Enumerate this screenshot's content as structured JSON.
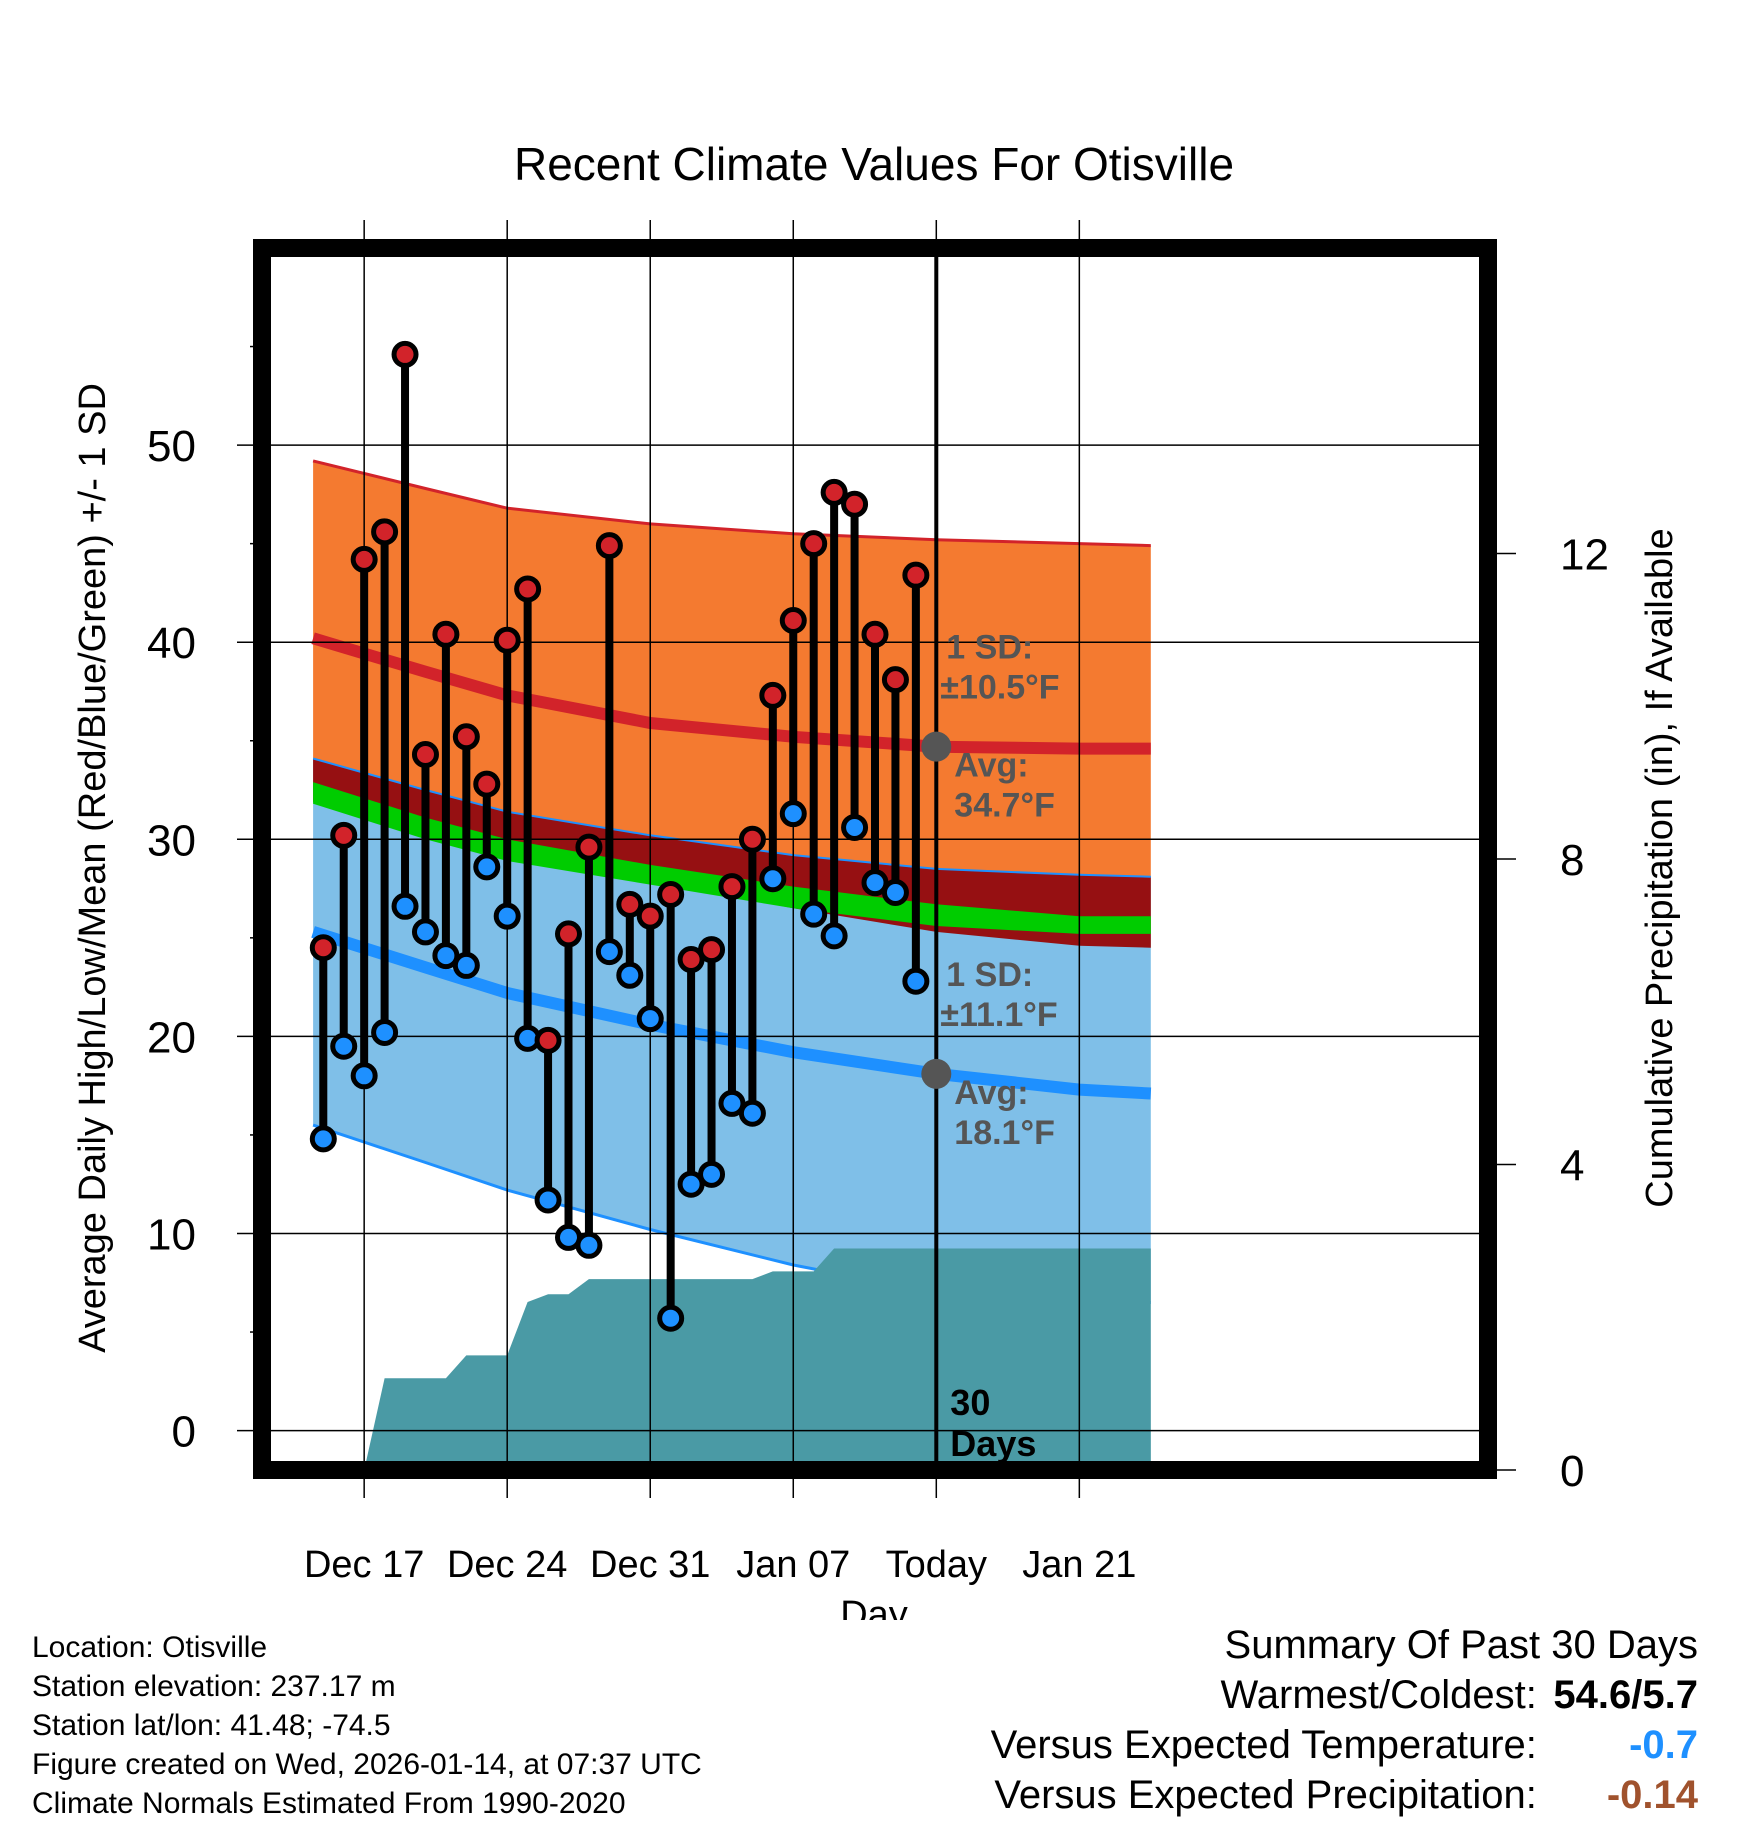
{
  "chart_data": {
    "type": "line",
    "title": "Recent Climate Values For Otisville",
    "xlabel": "Day",
    "ylabel": "Average Daily High/Low/Mean (Red/Blue/Green) +/- 1 SD",
    "y2label": "Cumulative Precipitation (in), If Available",
    "xlim": [
      -5,
      55
    ],
    "ylim": [
      -2,
      60
    ],
    "y2lim": [
      0,
      16
    ],
    "x_ticks": [
      {
        "x": 0,
        "label": "Dec 17"
      },
      {
        "x": 7,
        "label": "Dec 24"
      },
      {
        "x": 14,
        "label": "Dec 31"
      },
      {
        "x": 21,
        "label": "Jan 07"
      },
      {
        "x": 28,
        "label": "Today"
      },
      {
        "x": 35,
        "label": "Jan 21"
      }
    ],
    "y_ticks": [
      0,
      10,
      20,
      30,
      40,
      50
    ],
    "y2_ticks": [
      0,
      4,
      8,
      12
    ],
    "normals": {
      "x": [
        -2.5,
        3,
        7,
        14,
        21,
        28,
        35,
        38.5
      ],
      "high_avg": [
        40.2,
        38.5,
        37.3,
        35.9,
        35.2,
        34.7,
        34.6,
        34.6
      ],
      "high_upper": [
        49.2,
        47.8,
        46.8,
        46.0,
        45.5,
        45.2,
        45.0,
        44.9
      ],
      "high_lower": [
        31.9,
        30.5,
        29.4,
        27.9,
        26.5,
        25.3,
        24.6,
        24.5
      ],
      "low_avg": [
        25.3,
        23.5,
        22.2,
        20.6,
        19.2,
        18.1,
        17.3,
        17.1
      ],
      "low_upper": [
        34.1,
        32.5,
        31.4,
        30.2,
        29.2,
        28.5,
        28.2,
        28.1
      ],
      "low_lower": [
        15.5,
        13.6,
        12.2,
        10.2,
        8.4,
        7.0,
        6.4,
        6.5
      ],
      "mean_upper": [
        32.9,
        31.1,
        30.0,
        28.7,
        27.6,
        26.7,
        26.1,
        26.1
      ],
      "mean_lower": [
        31.8,
        30.0,
        28.9,
        27.7,
        26.5,
        25.6,
        25.2,
        25.2
      ]
    },
    "daily": {
      "x": [
        -2,
        -1,
        0,
        1,
        2,
        3,
        4,
        5,
        6,
        7,
        8,
        9,
        10,
        11,
        12,
        13,
        14,
        15,
        16,
        17,
        18,
        19,
        20,
        21,
        22,
        23,
        24,
        25,
        26,
        27
      ],
      "high": [
        24.5,
        30.2,
        44.2,
        45.6,
        54.6,
        34.3,
        40.4,
        35.2,
        32.8,
        40.1,
        42.7,
        19.8,
        25.2,
        29.6,
        44.9,
        26.7,
        26.1,
        27.2,
        23.9,
        24.4,
        27.6,
        30.0,
        37.3,
        41.1,
        45.0,
        47.6,
        47.0,
        40.4,
        38.1,
        43.4
      ],
      "low": [
        14.8,
        19.5,
        18.0,
        20.2,
        26.6,
        25.3,
        24.1,
        23.6,
        28.6,
        26.1,
        19.9,
        11.7,
        9.8,
        9.4,
        24.3,
        23.1,
        20.9,
        5.7,
        12.5,
        13.0,
        16.6,
        16.1,
        28.0,
        31.3,
        26.2,
        25.1,
        30.6,
        27.8,
        27.3,
        22.8
      ]
    },
    "precip_cumulative": {
      "x": [
        -5,
        0,
        1,
        2,
        3,
        4,
        5,
        6,
        7,
        8,
        9,
        10,
        11,
        12,
        13,
        14,
        15,
        16,
        17,
        18,
        19,
        20,
        21,
        22,
        23,
        24,
        25,
        26,
        27,
        28,
        38.5
      ],
      "values": [
        0,
        0,
        1.2,
        1.2,
        1.2,
        1.2,
        1.5,
        1.5,
        1.5,
        2.2,
        2.3,
        2.3,
        2.5,
        2.5,
        2.5,
        2.5,
        2.5,
        2.5,
        2.5,
        2.5,
        2.5,
        2.6,
        2.6,
        2.6,
        2.9,
        2.9,
        2.9,
        2.9,
        2.9,
        2.9,
        2.9
      ]
    },
    "annotations": {
      "high_sd": "1 SD:",
      "high_sd_val": "±10.5°F",
      "high_avg_label": "Avg:",
      "high_avg_val": "34.7°F",
      "high_avg_value": 34.7,
      "low_sd": "1 SD:",
      "low_sd_val": "±11.1°F",
      "low_avg_label": "Avg:",
      "low_avg_val": "18.1°F",
      "low_avg_value": 18.1,
      "period_number": "30",
      "period_unit": "Days",
      "today_x": 28
    },
    "colors": {
      "high_band": "#f47a30",
      "high_line": "#d2232a",
      "low_band": "#7fbfe8",
      "low_line": "#1e90ff",
      "mean_band": "#00cc00",
      "overlap": "#961012",
      "precip": "#4a9aa5",
      "high_dot": "#d2232a",
      "low_dot": "#1e90ff",
      "sd_text": "#555555"
    }
  },
  "meta": {
    "location": "Location: Otisville",
    "elevation": "Station elevation: 237.17 m",
    "latlon": "Station lat/lon: 41.48; -74.5",
    "created": "Figure created on Wed, 2026-01-14, at 07:37 UTC",
    "normals": "Climate Normals Estimated From 1990-2020"
  },
  "summary": {
    "title": "Summary Of Past 30 Days",
    "warm_label": "Warmest/Coldest:",
    "warm_value": "54.6/5.7",
    "temp_label": "Versus Expected Temperature:",
    "temp_value": "-0.7",
    "temp_color": "#1e90ff",
    "precip_label": "Versus Expected Precipitation:",
    "precip_value": "-0.14",
    "precip_color": "#a0522d"
  }
}
